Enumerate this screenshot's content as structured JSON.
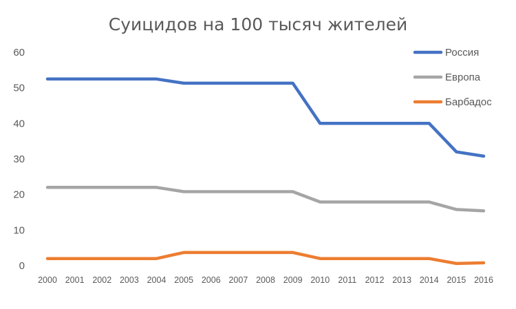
{
  "chart_data": {
    "type": "line",
    "title": "Суицидов на 100 тысяч жителей",
    "xlabel": "",
    "ylabel": "",
    "x": [
      "2000",
      "2001",
      "2002",
      "2003",
      "2004",
      "2005",
      "2006",
      "2007",
      "2008",
      "2009",
      "2010",
      "2011",
      "2012",
      "2013",
      "2014",
      "2015",
      "2016"
    ],
    "ylim": [
      0,
      60
    ],
    "yticks": [
      0,
      10,
      20,
      30,
      40,
      50,
      60
    ],
    "grid": false,
    "legend_position": "top-right",
    "series": [
      {
        "name": "Россия",
        "color": "#4472C4",
        "values": [
          52.5,
          52.5,
          52.5,
          52.5,
          52.5,
          51.3,
          51.3,
          51.3,
          51.3,
          51.3,
          40,
          40,
          40,
          40,
          40,
          32,
          30.8
        ]
      },
      {
        "name": "Европа",
        "color": "#A5A5A5",
        "values": [
          22,
          22,
          22,
          22,
          22,
          20.8,
          20.8,
          20.8,
          20.8,
          20.8,
          17.9,
          17.9,
          17.9,
          17.9,
          17.9,
          15.8,
          15.4
        ]
      },
      {
        "name": "Барбадос",
        "color": "#ED7D31",
        "values": [
          2,
          2,
          2,
          2,
          2,
          3.7,
          3.7,
          3.7,
          3.7,
          3.7,
          2,
          2,
          2,
          2,
          2,
          0.6,
          0.8
        ]
      }
    ]
  }
}
